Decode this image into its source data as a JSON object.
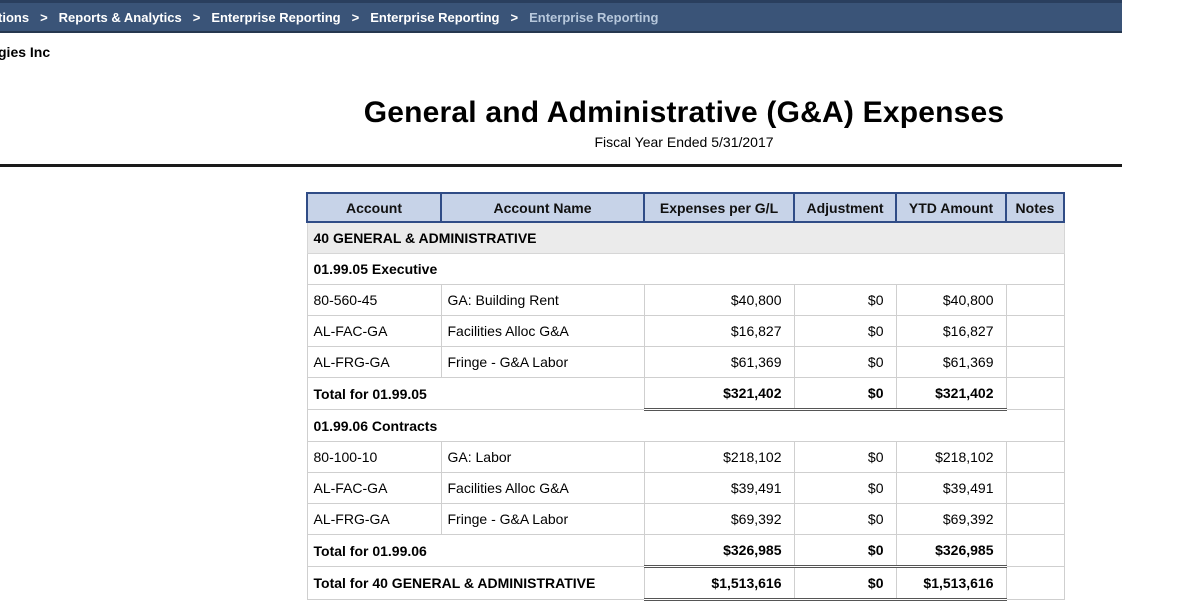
{
  "breadcrumb": {
    "items": [
      "tions",
      "Reports & Analytics",
      "Enterprise Reporting",
      "Enterprise Reporting"
    ],
    "current": "Enterprise Reporting",
    "separator": ">"
  },
  "company_name": "gies Inc",
  "report": {
    "title": "General and Administrative (G&A) Expenses",
    "subtitle": "Fiscal Year Ended 5/31/2017",
    "columns": [
      "Account",
      "Account Name",
      "Expenses per G/L",
      "Adjustment",
      "YTD Amount",
      "Notes"
    ],
    "group_label": "40 GENERAL & ADMINISTRATIVE",
    "sections": [
      {
        "label": "01.99.05 Executive",
        "rows": [
          {
            "account": "80-560-45",
            "name": "GA: Building Rent",
            "expenses": "$40,800",
            "adjustment": "$0",
            "ytd": "$40,800",
            "notes": ""
          },
          {
            "account": "AL-FAC-GA",
            "name": "Facilities Alloc G&A",
            "expenses": "$16,827",
            "adjustment": "$0",
            "ytd": "$16,827",
            "notes": ""
          },
          {
            "account": "AL-FRG-GA",
            "name": "Fringe - G&A Labor",
            "expenses": "$61,369",
            "adjustment": "$0",
            "ytd": "$61,369",
            "notes": ""
          }
        ],
        "total": {
          "label": "Total for 01.99.05",
          "expenses": "$321,402",
          "adjustment": "$0",
          "ytd": "$321,402"
        }
      },
      {
        "label": "01.99.06 Contracts",
        "rows": [
          {
            "account": "80-100-10",
            "name": "GA: Labor",
            "expenses": "$218,102",
            "adjustment": "$0",
            "ytd": "$218,102",
            "notes": ""
          },
          {
            "account": "AL-FAC-GA",
            "name": "Facilities Alloc G&A",
            "expenses": "$39,491",
            "adjustment": "$0",
            "ytd": "$39,491",
            "notes": ""
          },
          {
            "account": "AL-FRG-GA",
            "name": "Fringe - G&A Labor",
            "expenses": "$69,392",
            "adjustment": "$0",
            "ytd": "$69,392",
            "notes": ""
          }
        ],
        "total": {
          "label": "Total for 01.99.06",
          "expenses": "$326,985",
          "adjustment": "$0",
          "ytd": "$326,985"
        }
      }
    ],
    "grand_total": {
      "label": "Total for 40 GENERAL & ADMINISTRATIVE",
      "expenses": "$1,513,616",
      "adjustment": "$0",
      "ytd": "$1,513,616"
    }
  }
}
